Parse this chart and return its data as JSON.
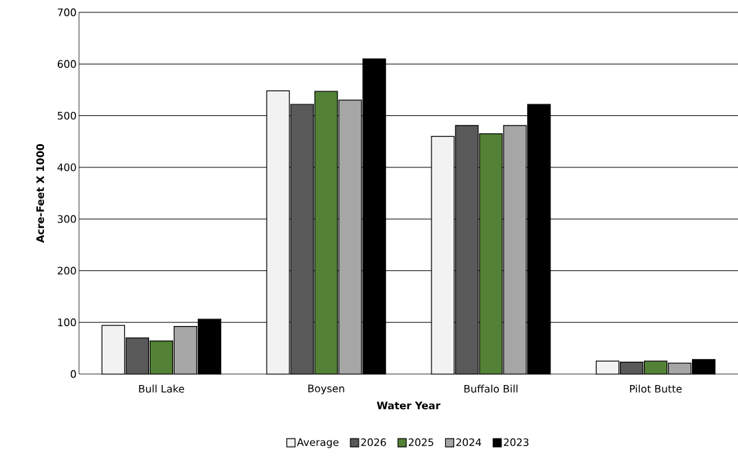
{
  "chart_data": {
    "type": "bar",
    "xlabel": "Water Year",
    "ylabel": "Acre-Feet X 1000",
    "categories": [
      "Bull Lake",
      "Boysen",
      "Buffalo Bill",
      "Pilot Butte"
    ],
    "series": [
      {
        "name": "Average",
        "color": "#f2f2f2",
        "values": [
          94,
          548,
          460,
          25
        ]
      },
      {
        "name": "2026",
        "color": "#595959",
        "values": [
          70,
          522,
          481,
          23
        ]
      },
      {
        "name": "2025",
        "color": "#538135",
        "values": [
          64,
          547,
          465,
          25
        ]
      },
      {
        "name": "2024",
        "color": "#a6a6a6",
        "values": [
          92,
          530,
          481,
          21
        ]
      },
      {
        "name": "2023",
        "color": "#000000",
        "values": [
          106,
          610,
          522,
          28
        ]
      }
    ],
    "ylim": [
      0,
      700
    ],
    "yticks": [
      0,
      100,
      200,
      300,
      400,
      500,
      600,
      700
    ],
    "grid": "y",
    "legend": "bottom"
  }
}
